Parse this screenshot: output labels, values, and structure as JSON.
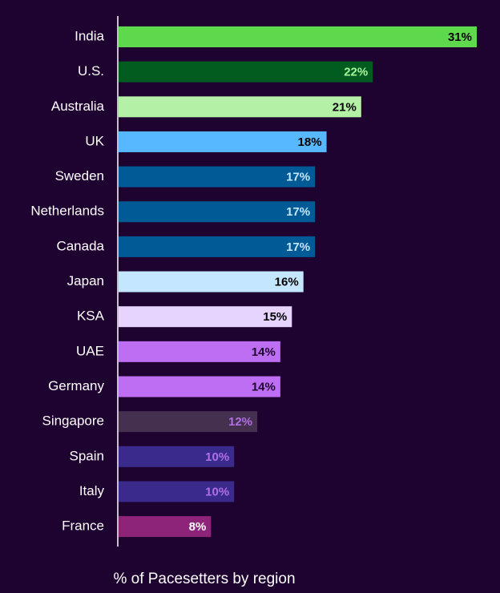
{
  "chart_data": {
    "type": "bar",
    "orientation": "horizontal",
    "categories": [
      "India",
      "U.S.",
      "Australia",
      "UK",
      "Sweden",
      "Netherlands",
      "Canada",
      "Japan",
      "KSA",
      "UAE",
      "Germany",
      "Singapore",
      "Spain",
      "Italy",
      "France"
    ],
    "values": [
      31,
      22,
      21,
      18,
      17,
      17,
      17,
      16,
      15,
      14,
      14,
      12,
      10,
      10,
      8
    ],
    "value_labels": [
      "31%",
      "22%",
      "21%",
      "18%",
      "17%",
      "17%",
      "17%",
      "16%",
      "15%",
      "14%",
      "14%",
      "12%",
      "10%",
      "10%",
      "8%"
    ],
    "bar_colors": [
      "#5fd94c",
      "#005c1f",
      "#b4f0a6",
      "#57b8ff",
      "#005a96",
      "#005a96",
      "#005a96",
      "#c4e6ff",
      "#e6d4ff",
      "#be6ef2",
      "#be6ef2",
      "#45304f",
      "#3a2a8c",
      "#3a2a8c",
      "#8e2479"
    ],
    "label_colors": [
      "#000000",
      "#a8f59a",
      "#000000",
      "#000000",
      "#c4e6ff",
      "#c4e6ff",
      "#c4e6ff",
      "#000000",
      "#000000",
      "#1e0230",
      "#1e0230",
      "#b06ee8",
      "#b06ee8",
      "#b06ee8",
      "#ffffff"
    ],
    "xlabel": "% of Pacesetters by region",
    "xlim": [
      0,
      31
    ],
    "grid": false,
    "legend": "none"
  }
}
